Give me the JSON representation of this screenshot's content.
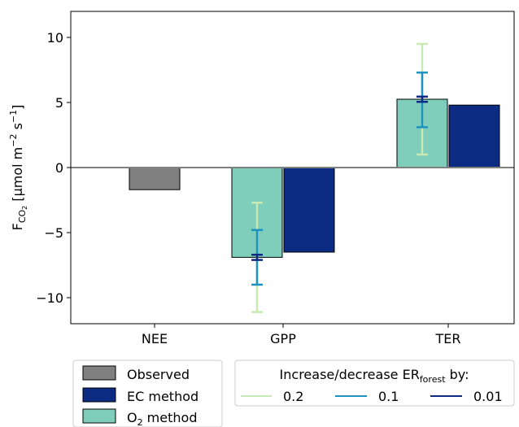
{
  "chart_data": {
    "type": "bar",
    "categories": [
      "NEE",
      "GPP",
      "TER"
    ],
    "ylabel": {
      "main": "F",
      "sub": "CO",
      "subsub": "2",
      "units_pre": " [µmol m",
      "exp1": "−2",
      "units_mid": " s",
      "exp2": "−1",
      "units_post": "]"
    },
    "ylim": [
      -12,
      12
    ],
    "yticks": [
      -10,
      -5,
      0,
      5,
      10
    ],
    "ytick_labels": [
      "−10",
      "−5",
      "0",
      "5",
      "10"
    ],
    "zero_line": true,
    "grid": false,
    "series": [
      {
        "name": "Observed",
        "color": "#808080",
        "values": [
          -1.7,
          null,
          null
        ]
      },
      {
        "name": "O",
        "name_sub": "2",
        "name_post": " method",
        "color": "#7fcdbb",
        "values": [
          null,
          -6.9,
          5.25
        ]
      },
      {
        "name": "EC method",
        "color": "#0c2c84",
        "values": [
          null,
          -6.5,
          4.8
        ]
      }
    ],
    "error_bars": {
      "title_pre": "Increase/decrease ER",
      "title_sub": "forest",
      "title_post": " by:",
      "levels": [
        {
          "name": "0.2",
          "color": "#c7e9b4",
          "ranges": {
            "GPP": [
              -11.1,
              -2.7
            ],
            "TER": [
              1.0,
              9.5
            ]
          }
        },
        {
          "name": "0.1",
          "color": "#1d91c0",
          "ranges": {
            "GPP": [
              -9.0,
              -4.8
            ],
            "TER": [
              3.1,
              7.3
            ]
          }
        },
        {
          "name": "0.01",
          "color": "#0c2c84",
          "ranges": {
            "GPP": [
              -7.1,
              -6.7
            ],
            "TER": [
              5.05,
              5.45
            ]
          }
        }
      ]
    },
    "legend_placement": "bottom"
  }
}
